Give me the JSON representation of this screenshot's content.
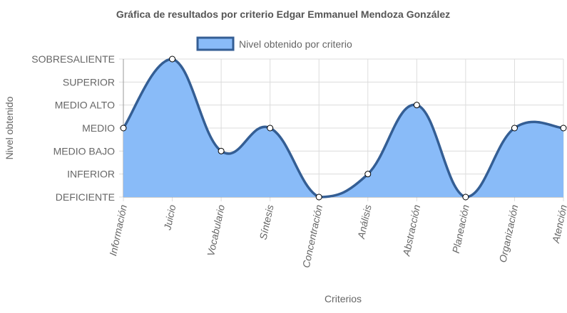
{
  "chart_data": {
    "type": "line",
    "title": "Gráfica de resultados por criterio Edgar Emmanuel Mendoza González",
    "xlabel": "Criterios",
    "ylabel": "Nivel obtenido",
    "y_levels": [
      "DEFICIENTE",
      "INFERIOR",
      "MEDIO BAJO",
      "MEDIO",
      "MEDIO ALTO",
      "SUPERIOR",
      "SOBRESALIENTE"
    ],
    "ylim": [
      0,
      6
    ],
    "categories": [
      "Información",
      "Juicio",
      "Vocabulario",
      "Síntesis",
      "Concentración",
      "Análisis",
      "Abstracción",
      "Planeación",
      "Organización",
      "Atención"
    ],
    "series": [
      {
        "name": "Nivel obtenido por criterio",
        "values": [
          3,
          6,
          2,
          3,
          0,
          1,
          4,
          0,
          3,
          3
        ],
        "fill": "#89bbf8",
        "stroke": "#345e94"
      }
    ],
    "legend_position": "top",
    "grid": true,
    "area_fill": true
  }
}
